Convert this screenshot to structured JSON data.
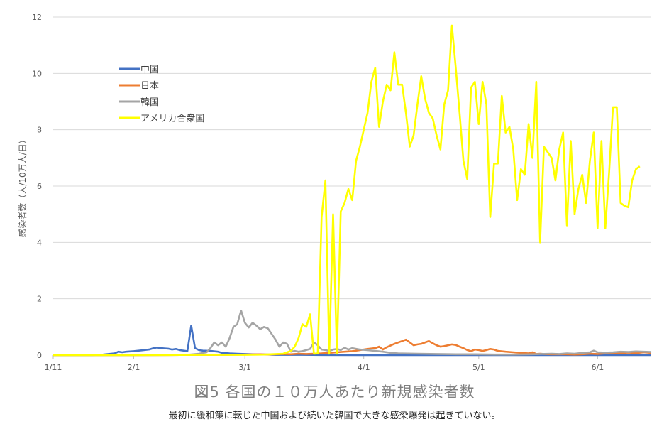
{
  "chart_data": {
    "type": "line",
    "title": "図5 各国の１０万人あたり新規感染者数",
    "subtitle": "最初に緩和策に転じた中国および続いた韓国で大きな感染爆発は起きていない。",
    "ylabel": "感染者数（人/10万人/日）",
    "xlabel": "",
    "ylim": [
      0,
      12
    ],
    "yticks": [
      0,
      2,
      4,
      6,
      8,
      10,
      12
    ],
    "x_is_day_offset_from": "1/11",
    "xtick_labels": [
      "1/11",
      "2/1",
      "3/1",
      "4/1",
      "5/1",
      "6/1"
    ],
    "xlim": [
      0,
      156
    ],
    "grid": true,
    "legend_position": "upper-left",
    "series": [
      {
        "name": "中国",
        "color": "#4472c4",
        "points": [
          [
            0,
            0
          ],
          [
            5,
            0
          ],
          [
            10,
            0
          ],
          [
            13,
            0.02
          ],
          [
            16,
            0.06
          ],
          [
            17,
            0.12
          ],
          [
            18,
            0.1
          ],
          [
            19,
            0.12
          ],
          [
            21,
            0.14
          ],
          [
            23,
            0.17
          ],
          [
            25,
            0.2
          ],
          [
            26,
            0.24
          ],
          [
            27,
            0.27
          ],
          [
            28,
            0.25
          ],
          [
            29,
            0.24
          ],
          [
            30,
            0.23
          ],
          [
            31,
            0.2
          ],
          [
            32,
            0.22
          ],
          [
            33,
            0.18
          ],
          [
            34,
            0.16
          ],
          [
            35,
            0.14
          ],
          [
            36,
            1.05
          ],
          [
            37,
            0.25
          ],
          [
            38,
            0.18
          ],
          [
            39,
            0.16
          ],
          [
            41,
            0.15
          ],
          [
            43,
            0.12
          ],
          [
            44,
            0.08
          ],
          [
            46,
            0.06
          ],
          [
            48,
            0.05
          ],
          [
            50,
            0.04
          ],
          [
            52,
            0.03
          ],
          [
            54,
            0.02
          ],
          [
            56,
            0.02
          ],
          [
            58,
            0.01
          ],
          [
            60,
            0.01
          ],
          [
            65,
            0.01
          ],
          [
            70,
            0.005
          ],
          [
            80,
            0.003
          ],
          [
            90,
            0.002
          ],
          [
            100,
            0.002
          ],
          [
            110,
            0.001
          ],
          [
            120,
            0.002
          ],
          [
            130,
            0.001
          ],
          [
            140,
            0.002
          ],
          [
            150,
            0.002
          ],
          [
            156,
            0.002
          ]
        ]
      },
      {
        "name": "日本",
        "color": "#ed7d31",
        "points": [
          [
            0,
            0
          ],
          [
            20,
            0
          ],
          [
            30,
            0.005
          ],
          [
            40,
            0.01
          ],
          [
            45,
            0.01
          ],
          [
            50,
            0.02
          ],
          [
            54,
            0.03
          ],
          [
            56,
            0.02
          ],
          [
            58,
            0.03
          ],
          [
            60,
            0.04
          ],
          [
            62,
            0.03
          ],
          [
            64,
            0.05
          ],
          [
            66,
            0.04
          ],
          [
            68,
            0.05
          ],
          [
            70,
            0.06
          ],
          [
            72,
            0.08
          ],
          [
            74,
            0.1
          ],
          [
            76,
            0.12
          ],
          [
            78,
            0.14
          ],
          [
            80,
            0.18
          ],
          [
            82,
            0.22
          ],
          [
            84,
            0.25
          ],
          [
            85,
            0.3
          ],
          [
            86,
            0.2
          ],
          [
            87,
            0.28
          ],
          [
            89,
            0.4
          ],
          [
            91,
            0.5
          ],
          [
            92,
            0.55
          ],
          [
            93,
            0.45
          ],
          [
            94,
            0.35
          ],
          [
            95,
            0.38
          ],
          [
            96,
            0.4
          ],
          [
            97,
            0.45
          ],
          [
            98,
            0.5
          ],
          [
            99,
            0.42
          ],
          [
            100,
            0.35
          ],
          [
            101,
            0.3
          ],
          [
            102,
            0.32
          ],
          [
            103,
            0.35
          ],
          [
            104,
            0.38
          ],
          [
            105,
            0.36
          ],
          [
            106,
            0.3
          ],
          [
            107,
            0.25
          ],
          [
            108,
            0.18
          ],
          [
            109,
            0.14
          ],
          [
            110,
            0.2
          ],
          [
            111,
            0.18
          ],
          [
            112,
            0.15
          ],
          [
            113,
            0.18
          ],
          [
            114,
            0.22
          ],
          [
            115,
            0.2
          ],
          [
            116,
            0.15
          ],
          [
            118,
            0.12
          ],
          [
            120,
            0.1
          ],
          [
            122,
            0.08
          ],
          [
            124,
            0.06
          ],
          [
            125,
            0.1
          ],
          [
            126,
            0.04
          ],
          [
            127,
            0.05
          ],
          [
            128,
            0.04
          ],
          [
            130,
            0.03
          ],
          [
            132,
            0.03
          ],
          [
            134,
            0.03
          ],
          [
            136,
            0.02
          ],
          [
            138,
            0.03
          ],
          [
            140,
            0.05
          ],
          [
            142,
            0.04
          ],
          [
            144,
            0.06
          ],
          [
            146,
            0.08
          ],
          [
            148,
            0.07
          ],
          [
            150,
            0.09
          ],
          [
            152,
            0.07
          ],
          [
            154,
            0.1
          ],
          [
            156,
            0.08
          ]
        ]
      },
      {
        "name": "韓国",
        "color": "#a5a5a5",
        "points": [
          [
            0,
            0
          ],
          [
            20,
            0
          ],
          [
            35,
            0.01
          ],
          [
            38,
            0.05
          ],
          [
            40,
            0.1
          ],
          [
            41,
            0.25
          ],
          [
            42,
            0.45
          ],
          [
            43,
            0.35
          ],
          [
            44,
            0.45
          ],
          [
            45,
            0.3
          ],
          [
            46,
            0.6
          ],
          [
            47,
            1.0
          ],
          [
            48,
            1.1
          ],
          [
            49,
            1.58
          ],
          [
            50,
            1.15
          ],
          [
            51,
            0.98
          ],
          [
            52,
            1.15
          ],
          [
            53,
            1.05
          ],
          [
            54,
            0.92
          ],
          [
            55,
            1.0
          ],
          [
            56,
            0.95
          ],
          [
            57,
            0.75
          ],
          [
            58,
            0.55
          ],
          [
            59,
            0.3
          ],
          [
            60,
            0.45
          ],
          [
            61,
            0.4
          ],
          [
            62,
            0.12
          ],
          [
            63,
            0.15
          ],
          [
            64,
            0.12
          ],
          [
            65,
            0.14
          ],
          [
            66,
            0.18
          ],
          [
            67,
            0.22
          ],
          [
            68,
            0.45
          ],
          [
            69,
            0.35
          ],
          [
            70,
            0.2
          ],
          [
            71,
            0.18
          ],
          [
            72,
            0.15
          ],
          [
            73,
            0.2
          ],
          [
            74,
            0.22
          ],
          [
            75,
            0.18
          ],
          [
            76,
            0.26
          ],
          [
            77,
            0.2
          ],
          [
            78,
            0.25
          ],
          [
            80,
            0.2
          ],
          [
            82,
            0.18
          ],
          [
            84,
            0.15
          ],
          [
            86,
            0.12
          ],
          [
            88,
            0.08
          ],
          [
            90,
            0.06
          ],
          [
            95,
            0.05
          ],
          [
            100,
            0.04
          ],
          [
            105,
            0.03
          ],
          [
            110,
            0.03
          ],
          [
            115,
            0.02
          ],
          [
            120,
            0.02
          ],
          [
            125,
            0.03
          ],
          [
            130,
            0.05
          ],
          [
            132,
            0.04
          ],
          [
            134,
            0.06
          ],
          [
            136,
            0.05
          ],
          [
            138,
            0.08
          ],
          [
            140,
            0.1
          ],
          [
            141,
            0.16
          ],
          [
            142,
            0.1
          ],
          [
            144,
            0.09
          ],
          [
            146,
            0.1
          ],
          [
            148,
            0.12
          ],
          [
            150,
            0.11
          ],
          [
            152,
            0.13
          ],
          [
            154,
            0.12
          ],
          [
            156,
            0.11
          ]
        ]
      },
      {
        "name": "アメリカ合衆国",
        "color": "#ffff00",
        "points": [
          [
            0,
            0
          ],
          [
            10,
            0
          ],
          [
            20,
            0
          ],
          [
            30,
            0.005
          ],
          [
            40,
            0.01
          ],
          [
            50,
            0.01
          ],
          [
            55,
            0.02
          ],
          [
            60,
            0.05
          ],
          [
            62,
            0.15
          ],
          [
            63,
            0.3
          ],
          [
            64,
            0.6
          ],
          [
            65,
            1.1
          ],
          [
            66,
            1.0
          ],
          [
            67,
            1.45
          ],
          [
            68,
            0.05
          ],
          [
            69,
            0.06
          ],
          [
            70,
            4.9
          ],
          [
            71,
            6.2
          ],
          [
            72,
            0.05
          ],
          [
            73,
            5.0
          ],
          [
            74,
            0.05
          ],
          [
            75,
            5.1
          ],
          [
            76,
            5.4
          ],
          [
            77,
            5.9
          ],
          [
            78,
            5.5
          ],
          [
            79,
            6.9
          ],
          [
            80,
            7.4
          ],
          [
            81,
            8.0
          ],
          [
            82,
            8.6
          ],
          [
            83,
            9.7
          ],
          [
            84,
            10.2
          ],
          [
            85,
            8.1
          ],
          [
            86,
            9.0
          ],
          [
            87,
            9.6
          ],
          [
            88,
            9.4
          ],
          [
            89,
            10.75
          ],
          [
            90,
            9.6
          ],
          [
            91,
            9.6
          ],
          [
            92,
            8.6
          ],
          [
            93,
            7.4
          ],
          [
            94,
            7.8
          ],
          [
            95,
            8.9
          ],
          [
            96,
            9.9
          ],
          [
            97,
            9.1
          ],
          [
            98,
            8.6
          ],
          [
            99,
            8.4
          ],
          [
            100,
            7.8
          ],
          [
            101,
            7.3
          ],
          [
            102,
            8.9
          ],
          [
            103,
            9.4
          ],
          [
            104,
            11.7
          ],
          [
            105,
            10.2
          ],
          [
            106,
            8.6
          ],
          [
            107,
            6.9
          ],
          [
            108,
            6.25
          ],
          [
            109,
            9.5
          ],
          [
            110,
            9.7
          ],
          [
            111,
            8.2
          ],
          [
            112,
            9.7
          ],
          [
            113,
            8.9
          ],
          [
            114,
            4.9
          ],
          [
            115,
            6.8
          ],
          [
            116,
            6.8
          ],
          [
            117,
            9.2
          ],
          [
            118,
            7.9
          ],
          [
            119,
            8.1
          ],
          [
            120,
            7.3
          ],
          [
            121,
            5.5
          ],
          [
            122,
            6.6
          ],
          [
            123,
            6.4
          ],
          [
            124,
            8.2
          ],
          [
            125,
            7.0
          ],
          [
            126,
            9.7
          ],
          [
            127,
            4.0
          ],
          [
            128,
            7.4
          ],
          [
            129,
            7.2
          ],
          [
            130,
            7.0
          ],
          [
            131,
            6.2
          ],
          [
            132,
            7.3
          ],
          [
            133,
            7.9
          ],
          [
            134,
            4.6
          ],
          [
            135,
            7.6
          ],
          [
            136,
            5.0
          ],
          [
            137,
            5.9
          ],
          [
            138,
            6.4
          ],
          [
            139,
            5.4
          ],
          [
            140,
            6.9
          ],
          [
            141,
            7.9
          ],
          [
            142,
            4.5
          ],
          [
            143,
            7.6
          ],
          [
            144,
            4.5
          ],
          [
            145,
            6.5
          ],
          [
            146,
            8.8
          ],
          [
            147,
            8.8
          ],
          [
            148,
            5.4
          ],
          [
            149,
            5.3
          ],
          [
            150,
            5.25
          ],
          [
            151,
            6.2
          ],
          [
            152,
            6.6
          ],
          [
            153,
            6.7
          ]
        ]
      }
    ]
  }
}
